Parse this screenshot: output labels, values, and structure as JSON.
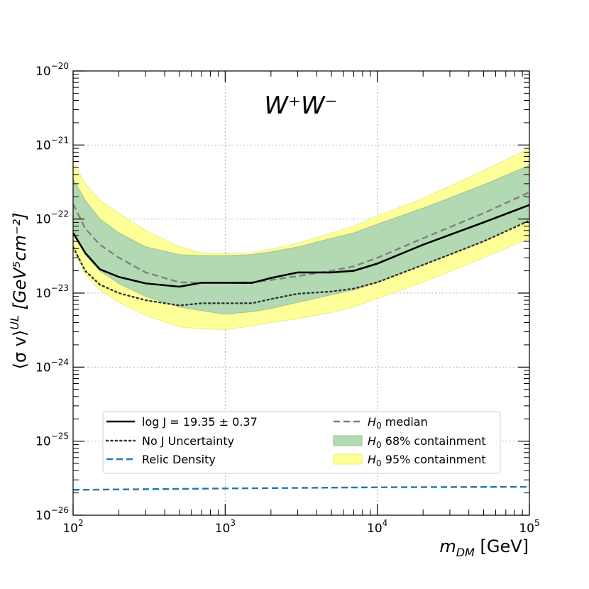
{
  "chart_data": {
    "type": "line",
    "title": "W⁺W⁻",
    "xlabel": {
      "main": "m",
      "sub": "DM",
      "unit": "[GeV]"
    },
    "ylabel": {
      "main": "⟨σ v⟩",
      "sup": "UL",
      "unit": "[GeV⁵cm⁻²]"
    },
    "xscale": "log",
    "yscale": "log",
    "xlim": [
      100,
      100000
    ],
    "ylim": [
      1e-26,
      1e-20
    ],
    "grid": true,
    "legend_position": "lower-center",
    "x_ticks": [
      {
        "base": "10",
        "exp": "2",
        "value": 100
      },
      {
        "base": "10",
        "exp": "3",
        "value": 1000
      },
      {
        "base": "10",
        "exp": "4",
        "value": 10000
      },
      {
        "base": "10",
        "exp": "5",
        "value": 100000
      }
    ],
    "y_ticks": [
      {
        "base": "10",
        "exp": "−26",
        "value": 1e-26
      },
      {
        "base": "10",
        "exp": "−25",
        "value": 1e-25
      },
      {
        "base": "10",
        "exp": "−24",
        "value": 1e-24
      },
      {
        "base": "10",
        "exp": "−23",
        "value": 1e-23
      },
      {
        "base": "10",
        "exp": "−22",
        "value": 1e-22
      },
      {
        "base": "10",
        "exp": "−21",
        "value": 1e-21
      },
      {
        "base": "10",
        "exp": "−20",
        "value": 1e-20
      }
    ],
    "series": [
      {
        "name": "log J = 19.35 ± 0.37",
        "style": "solid",
        "color": "#000000",
        "x": [
          100,
          120,
          150,
          200,
          300,
          500,
          700,
          1000,
          1500,
          2000,
          3000,
          5000,
          7000,
          10000,
          20000,
          50000,
          100000
        ],
        "y": [
          6.5e-23,
          3.5e-23,
          2.1e-23,
          1.65e-23,
          1.35e-23,
          1.22e-23,
          1.38e-23,
          1.38e-23,
          1.37e-23,
          1.6e-23,
          1.9e-23,
          1.9e-23,
          2e-23,
          2.5e-23,
          4.5e-23,
          9e-23,
          1.55e-22
        ]
      },
      {
        "name": "No J Uncertainty",
        "style": "dotted",
        "color": "#333333",
        "x": [
          100,
          120,
          150,
          200,
          300,
          500,
          700,
          1000,
          1500,
          2000,
          3000,
          5000,
          7000,
          10000,
          20000,
          50000,
          100000
        ],
        "y": [
          4.2e-23,
          2e-23,
          1.3e-23,
          1e-23,
          8e-24,
          6.8e-24,
          7.3e-24,
          7.3e-24,
          7.3e-24,
          8.3e-24,
          9.8e-24,
          1.05e-23,
          1.15e-23,
          1.4e-23,
          2.4e-23,
          5e-23,
          9.5e-23
        ]
      },
      {
        "name": "Relic Density",
        "style": "dashed",
        "color": "#1f77b4",
        "x": [
          100,
          1000,
          10000,
          100000
        ],
        "y": [
          2.2e-26,
          2.3e-26,
          2.38e-26,
          2.42e-26
        ]
      },
      {
        "name": "H₀ median",
        "style": "dashed",
        "color": "#808080",
        "x": [
          100,
          120,
          150,
          200,
          300,
          500,
          700,
          1000,
          1500,
          2000,
          3000,
          5000,
          7000,
          10000,
          20000,
          50000,
          100000
        ],
        "y": [
          1.6e-22,
          7.5e-23,
          4.5e-23,
          3e-23,
          1.9e-23,
          1.4e-23,
          1.38e-23,
          1.38e-23,
          1.4e-23,
          1.5e-23,
          1.7e-23,
          2e-23,
          2.3e-23,
          3e-23,
          5.5e-23,
          1.2e-22,
          2.3e-22
        ]
      }
    ],
    "bands": [
      {
        "name": "H₀ 95% containment",
        "color": "#ffff99",
        "stroke": "#eded80",
        "x": [
          100,
          120,
          150,
          200,
          300,
          500,
          700,
          1000,
          1500,
          2000,
          3000,
          5000,
          7000,
          10000,
          20000,
          50000,
          100000
        ],
        "upper": [
          6e-22,
          3e-22,
          1.8e-22,
          1.2e-22,
          7e-23,
          4.2e-23,
          3.5e-23,
          3.4e-23,
          3.5e-23,
          3.9e-23,
          4.7e-23,
          6.5e-23,
          8e-23,
          1.1e-22,
          1.9e-22,
          4.5e-22,
          9e-22
        ],
        "lower": [
          3.8e-23,
          1.8e-23,
          1.1e-23,
          7.5e-24,
          5e-24,
          3.5e-24,
          3.3e-24,
          3.2e-24,
          3.6e-24,
          4e-24,
          4.5e-24,
          5.5e-24,
          6.5e-24,
          8.5e-24,
          1.4e-23,
          3e-23,
          5.5e-23
        ]
      },
      {
        "name": "H₀ 68% containment",
        "color": "#b3d9b3",
        "stroke": "#9ec48a",
        "x": [
          100,
          120,
          150,
          200,
          300,
          500,
          700,
          1000,
          1500,
          2000,
          3000,
          5000,
          7000,
          10000,
          20000,
          50000,
          100000
        ],
        "upper": [
          3.5e-22,
          1.8e-22,
          1e-22,
          6.5e-23,
          4.2e-23,
          3.3e-23,
          3.2e-23,
          3.2e-23,
          3.3e-23,
          3.6e-23,
          4.2e-23,
          5.5e-23,
          6.5e-23,
          8.5e-23,
          1.4e-22,
          2.9e-22,
          5.3e-22
        ],
        "lower": [
          7e-23,
          3.3e-23,
          2e-23,
          1.35e-23,
          9e-24,
          6.5e-24,
          5.8e-24,
          5.2e-24,
          5.6e-24,
          6.2e-24,
          7.5e-24,
          9.5e-24,
          1.1e-23,
          1.4e-23,
          2.4e-23,
          5e-23,
          1e-22
        ]
      }
    ],
    "legend": {
      "left": [
        {
          "label": "log J = 19.35 ± 0.37",
          "style": "solid",
          "color": "#000000"
        },
        {
          "label": "No J Uncertainty",
          "style": "dotted",
          "color": "#333333"
        },
        {
          "label": "Relic Density",
          "style": "dashed",
          "color": "#1f77b4"
        }
      ],
      "right": [
        {
          "sym": "H",
          "sub": "0",
          "label": " median",
          "style": "dashed",
          "color": "#808080"
        },
        {
          "sym": "H",
          "sub": "0",
          "label": " 68% containment",
          "style": "patch",
          "color": "#b3d9b3",
          "stroke": "#9ec48a"
        },
        {
          "sym": "H",
          "sub": "0",
          "label": " 95% containment",
          "style": "patch",
          "color": "#ffff99",
          "stroke": "#eded80"
        }
      ]
    }
  }
}
